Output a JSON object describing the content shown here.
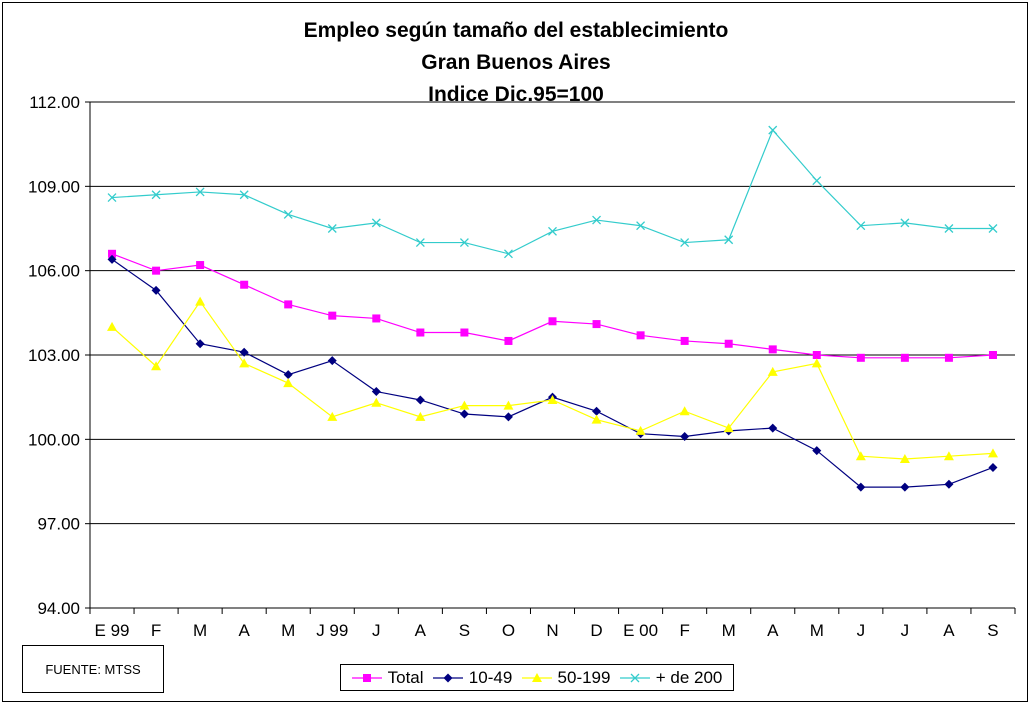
{
  "chart_data": {
    "type": "line",
    "title": "Empleo según tamaño del establecimiento",
    "subtitle1": "Gran Buenos Aires",
    "subtitle2": "Indice Dic.95=100",
    "categories": [
      "E 99",
      "F",
      "M",
      "A",
      "M",
      "J 99",
      "J",
      "A",
      "S",
      "O",
      "N",
      "D",
      "E 00",
      "F",
      "M",
      "A",
      "M",
      "J",
      "J",
      "A",
      "S"
    ],
    "yticks": [
      "94.00",
      "97.00",
      "100.00",
      "103.00",
      "106.00",
      "109.00",
      "112.00"
    ],
    "ylim": [
      94,
      112
    ],
    "grid": true,
    "legend_position": "bottom",
    "series": [
      {
        "name": "Total",
        "color": "#ff00ff",
        "marker": "square",
        "values": [
          106.6,
          106.0,
          106.2,
          105.5,
          104.8,
          104.4,
          104.3,
          103.8,
          103.8,
          103.5,
          104.2,
          104.1,
          103.7,
          103.5,
          103.4,
          103.2,
          103.0,
          102.9,
          102.9,
          102.9,
          103.0
        ]
      },
      {
        "name": "10-49",
        "color": "#000080",
        "marker": "diamond",
        "values": [
          106.4,
          105.3,
          103.4,
          103.1,
          102.3,
          102.8,
          101.7,
          101.4,
          100.9,
          100.8,
          101.5,
          101.0,
          100.2,
          100.1,
          100.3,
          100.4,
          99.6,
          98.3,
          98.3,
          98.4,
          99.0
        ]
      },
      {
        "name": "50-199",
        "color": "#ffff00",
        "marker": "triangle",
        "values": [
          104.0,
          102.6,
          104.9,
          102.7,
          102.0,
          100.8,
          101.3,
          100.8,
          101.2,
          101.2,
          101.4,
          100.7,
          100.3,
          101.0,
          100.4,
          102.4,
          102.7,
          99.4,
          99.3,
          99.4,
          99.5
        ]
      },
      {
        "name": "+ de 200",
        "color": "#33cccc",
        "marker": "x",
        "values": [
          108.6,
          108.7,
          108.8,
          108.7,
          108.0,
          107.5,
          107.7,
          107.0,
          107.0,
          106.6,
          107.4,
          107.8,
          107.6,
          107.0,
          107.1,
          111.0,
          109.2,
          107.6,
          107.7,
          107.5,
          107.5
        ]
      }
    ]
  },
  "source_note": "FUENTE: MTSS"
}
